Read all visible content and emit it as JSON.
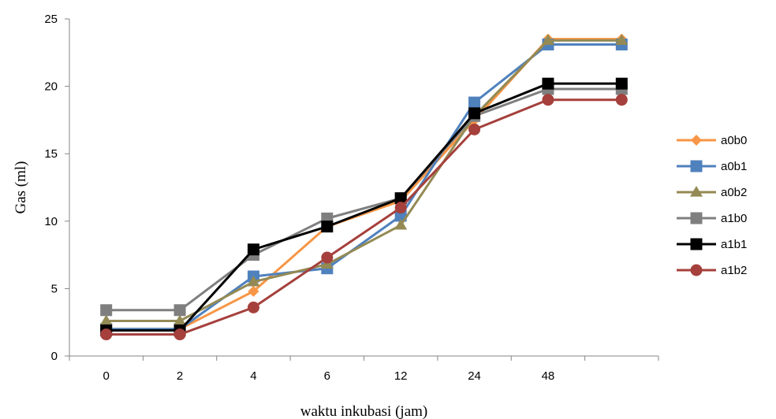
{
  "chart_data": {
    "type": "line",
    "title": "",
    "xlabel": "waktu inkubasi (jam)",
    "ylabel": "Gas (ml)",
    "categories": [
      "0",
      "2",
      "4",
      "6",
      "12",
      "24",
      "48",
      ""
    ],
    "ylim": [
      0,
      25
    ],
    "yticks": [
      0,
      5,
      10,
      15,
      20,
      25
    ],
    "grid": false,
    "legend_position": "right",
    "series": [
      {
        "name": "a0b0",
        "color": "#F79646",
        "marker": "diamond",
        "values": [
          2.0,
          2.0,
          4.8,
          9.6,
          11.5,
          17.5,
          23.5,
          23.5
        ]
      },
      {
        "name": "a0b1",
        "color": "#4F81BD",
        "marker": "square",
        "values": [
          2.0,
          2.0,
          5.9,
          6.5,
          10.4,
          18.8,
          23.1,
          23.1
        ]
      },
      {
        "name": "a0b2",
        "color": "#948A54",
        "marker": "triangle",
        "values": [
          2.6,
          2.6,
          5.5,
          6.8,
          9.7,
          17.8,
          23.4,
          23.4
        ]
      },
      {
        "name": "a1b0",
        "color": "#7F7F7F",
        "marker": "square",
        "values": [
          3.4,
          3.4,
          7.5,
          10.2,
          11.7,
          17.8,
          19.8,
          19.8
        ]
      },
      {
        "name": "a1b1",
        "color": "#000000",
        "marker": "square",
        "values": [
          1.9,
          1.9,
          7.9,
          9.6,
          11.7,
          18.0,
          20.2,
          20.2
        ]
      },
      {
        "name": "a1b2",
        "color": "#A5403C",
        "marker": "circle",
        "values": [
          1.6,
          1.6,
          3.6,
          7.3,
          11.0,
          16.8,
          19.0,
          19.0
        ]
      }
    ]
  }
}
